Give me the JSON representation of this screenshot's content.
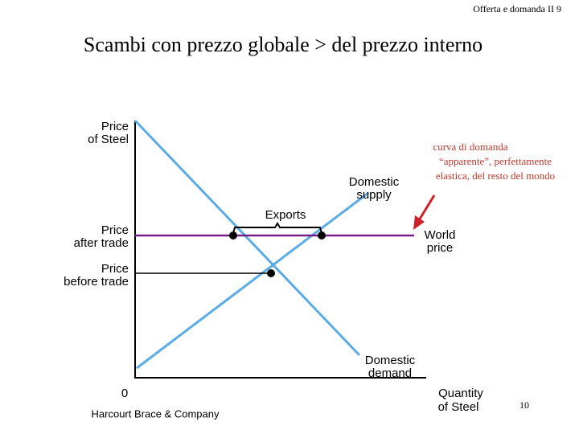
{
  "header": {
    "slide_label": "Offerta e domanda II 9",
    "title": "Scambi con prezzo globale > del prezzo interno",
    "page_number": "10",
    "publisher": "Harcourt Brace & Company"
  },
  "diagram": {
    "y_axis_label": [
      "Price",
      "of Steel"
    ],
    "x_axis_label": [
      "Quantity",
      "of Steel"
    ],
    "origin": "0",
    "supply_label": [
      "Domestic",
      "supply"
    ],
    "demand_label": [
      "Domestic",
      "demand"
    ],
    "exports_label": "Exports",
    "price_after_trade": [
      "Price",
      "after trade"
    ],
    "price_before_trade": [
      "Price",
      "before trade"
    ],
    "world_price": [
      "World",
      "price"
    ],
    "annotation": [
      "curva di domanda",
      "“apparente”,  perfettamente",
      "elastica, del resto del mondo"
    ]
  }
}
